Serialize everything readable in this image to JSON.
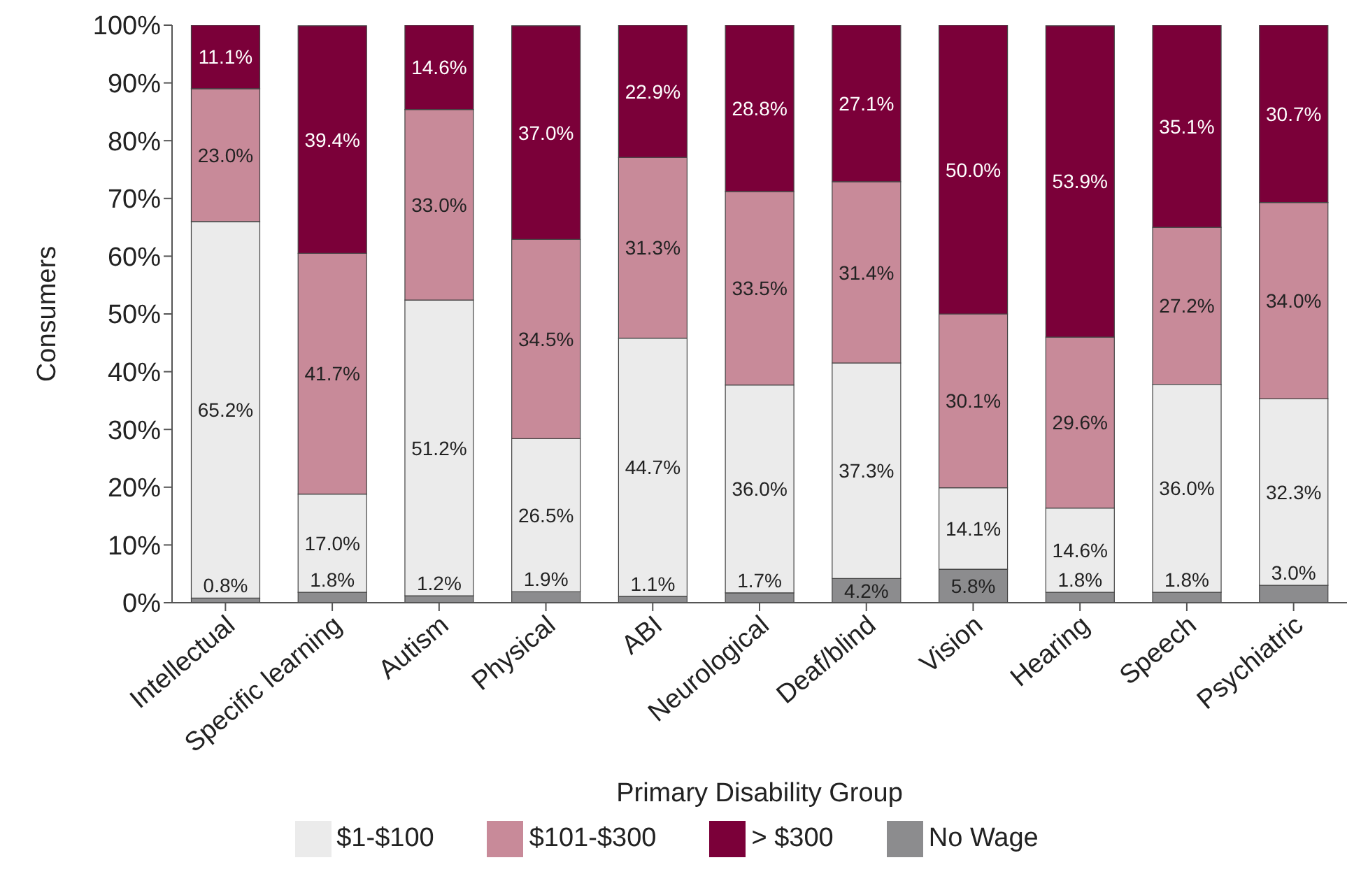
{
  "chart_data": {
    "type": "bar",
    "stacked": true,
    "xlabel": "Primary Disability Group",
    "ylabel": "Consumers",
    "categories": [
      "Intellectual",
      "Specific learning",
      "Autism",
      "Physical",
      "ABI",
      "Neurological",
      "Deaf/blind",
      "Vision",
      "Hearing",
      "Speech",
      "Psychiatric"
    ],
    "ylim": [
      0,
      100
    ],
    "yticks": [
      {
        "value": 0,
        "label": "0%"
      },
      {
        "value": 10,
        "label": "10%"
      },
      {
        "value": 20,
        "label": "20%"
      },
      {
        "value": 30,
        "label": "30%"
      },
      {
        "value": 40,
        "label": "40%"
      },
      {
        "value": 50,
        "label": "50%"
      },
      {
        "value": 60,
        "label": "60%"
      },
      {
        "value": 70,
        "label": "70%"
      },
      {
        "value": 80,
        "label": "80%"
      },
      {
        "value": 90,
        "label": "90%"
      },
      {
        "value": 100,
        "label": "100%"
      }
    ],
    "legend": "bottom",
    "grid": false,
    "series": [
      {
        "name": "No Wage",
        "color": "#8c8c8e",
        "values": [
          0.8,
          1.8,
          1.2,
          1.9,
          1.1,
          1.7,
          4.2,
          5.8,
          1.8,
          1.8,
          3.0
        ],
        "value_labels": [
          "0.8%",
          "1.8%",
          "1.2%",
          "1.9%",
          "1.1%",
          "1.7%",
          "4.2%",
          "5.8%",
          "1.8%",
          "1.8%",
          "3.0%"
        ]
      },
      {
        "name": "$1-$100",
        "color": "#ebebeb",
        "values": [
          65.2,
          17.0,
          51.2,
          26.5,
          44.7,
          36.0,
          37.3,
          14.1,
          14.6,
          36.0,
          32.3
        ],
        "value_labels": [
          "65.2%",
          "17.0%",
          "51.2%",
          "26.5%",
          "44.7%",
          "36.0%",
          "37.3%",
          "14.1%",
          "14.6%",
          "36.0%",
          "32.3%"
        ]
      },
      {
        "name": "$101-$300",
        "color": "#c88a99",
        "values": [
          23.0,
          41.7,
          33.0,
          34.5,
          31.3,
          33.5,
          31.4,
          30.1,
          29.6,
          27.2,
          34.0
        ],
        "value_labels": [
          "23.0%",
          "41.7%",
          "33.0%",
          "34.5%",
          "31.3%",
          "33.5%",
          "31.4%",
          "30.1%",
          "29.6%",
          "27.2%",
          "34.0%"
        ]
      },
      {
        "name": "> $300",
        "color": "#7b0039",
        "values": [
          11.1,
          39.4,
          14.6,
          37.0,
          22.9,
          28.8,
          27.1,
          50.0,
          53.9,
          35.1,
          30.7
        ],
        "value_labels": [
          "11.1%",
          "39.4%",
          "14.6%",
          "37.0%",
          "22.9%",
          "28.8%",
          "27.1%",
          "50.0%",
          "53.9%",
          "35.1%",
          "30.7%"
        ]
      }
    ]
  }
}
